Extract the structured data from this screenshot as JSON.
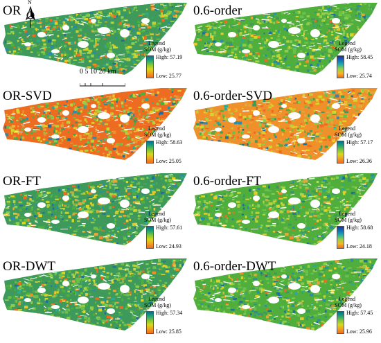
{
  "figure": {
    "legend_title": "Legend",
    "legend_unit": "SOM (g/kg)",
    "high_prefix": "High: ",
    "low_prefix": "Low: ",
    "scale_label": "0  5 10    20 km",
    "north_letter": "N",
    "ramps": {
      "or": [
        "#0a6e8a",
        "#1fa37a",
        "#7fc83a",
        "#d8d81e",
        "#f0a020",
        "#f26a1e"
      ],
      "order": [
        "#1e2f9a",
        "#1470b8",
        "#24b0a8",
        "#98d440",
        "#f4b824",
        "#f06a1c"
      ]
    },
    "panels": [
      {
        "title": "OR",
        "high": "57.19",
        "low": "25.77",
        "ramp": "or",
        "has_north": true,
        "has_scale": true,
        "mix": {
          "green": 0.52,
          "yellow": 0.22,
          "orange": 0.14,
          "blue": 0.12
        }
      },
      {
        "title": "0.6-order",
        "high": "58.45",
        "low": "25.74",
        "ramp": "order",
        "has_north": false,
        "has_scale": false,
        "mix": {
          "green": 0.6,
          "yellow": 0.18,
          "orange": 0.07,
          "blue": 0.15
        }
      },
      {
        "title": "OR-SVD",
        "high": "58.63",
        "low": "25.05",
        "ramp": "or",
        "has_north": false,
        "has_scale": false,
        "mix": {
          "green": 0.28,
          "yellow": 0.24,
          "orange": 0.36,
          "blue": 0.12
        }
      },
      {
        "title": "0.6-order-SVD",
        "high": "57.17",
        "low": "26.36",
        "ramp": "or",
        "has_north": false,
        "has_scale": false,
        "mix": {
          "green": 0.27,
          "yellow": 0.25,
          "orange": 0.38,
          "blue": 0.1
        }
      },
      {
        "title": "OR-FT",
        "high": "57.61",
        "low": "24.93",
        "ramp": "or",
        "has_north": false,
        "has_scale": false,
        "mix": {
          "green": 0.48,
          "yellow": 0.22,
          "orange": 0.14,
          "blue": 0.16
        }
      },
      {
        "title": "0.6-order-FT",
        "high": "58.68",
        "low": "24.18",
        "ramp": "order",
        "has_north": false,
        "has_scale": false,
        "mix": {
          "green": 0.55,
          "yellow": 0.2,
          "orange": 0.11,
          "blue": 0.14
        }
      },
      {
        "title": "OR-DWT",
        "high": "57.34",
        "low": "25.85",
        "ramp": "or",
        "has_north": false,
        "has_scale": false,
        "mix": {
          "green": 0.58,
          "yellow": 0.22,
          "orange": 0.1,
          "blue": 0.1
        }
      },
      {
        "title": "0.6-order-DWT",
        "high": "57.45",
        "low": "25.96",
        "ramp": "or",
        "has_north": false,
        "has_scale": false,
        "mix": {
          "green": 0.56,
          "yellow": 0.18,
          "orange": 0.1,
          "blue": 0.16
        }
      }
    ],
    "palette": {
      "green": [
        "#4fae3c",
        "#6cc04a",
        "#3e9a5a",
        "#8ccc4e"
      ],
      "yellow": [
        "#d6d62a",
        "#e8c830",
        "#b8d23c"
      ],
      "orange": [
        "#f0902a",
        "#ee6c22",
        "#e0a838"
      ],
      "blue": [
        "#2a8ca8",
        "#1f6f9e",
        "#2fa890"
      ]
    }
  }
}
